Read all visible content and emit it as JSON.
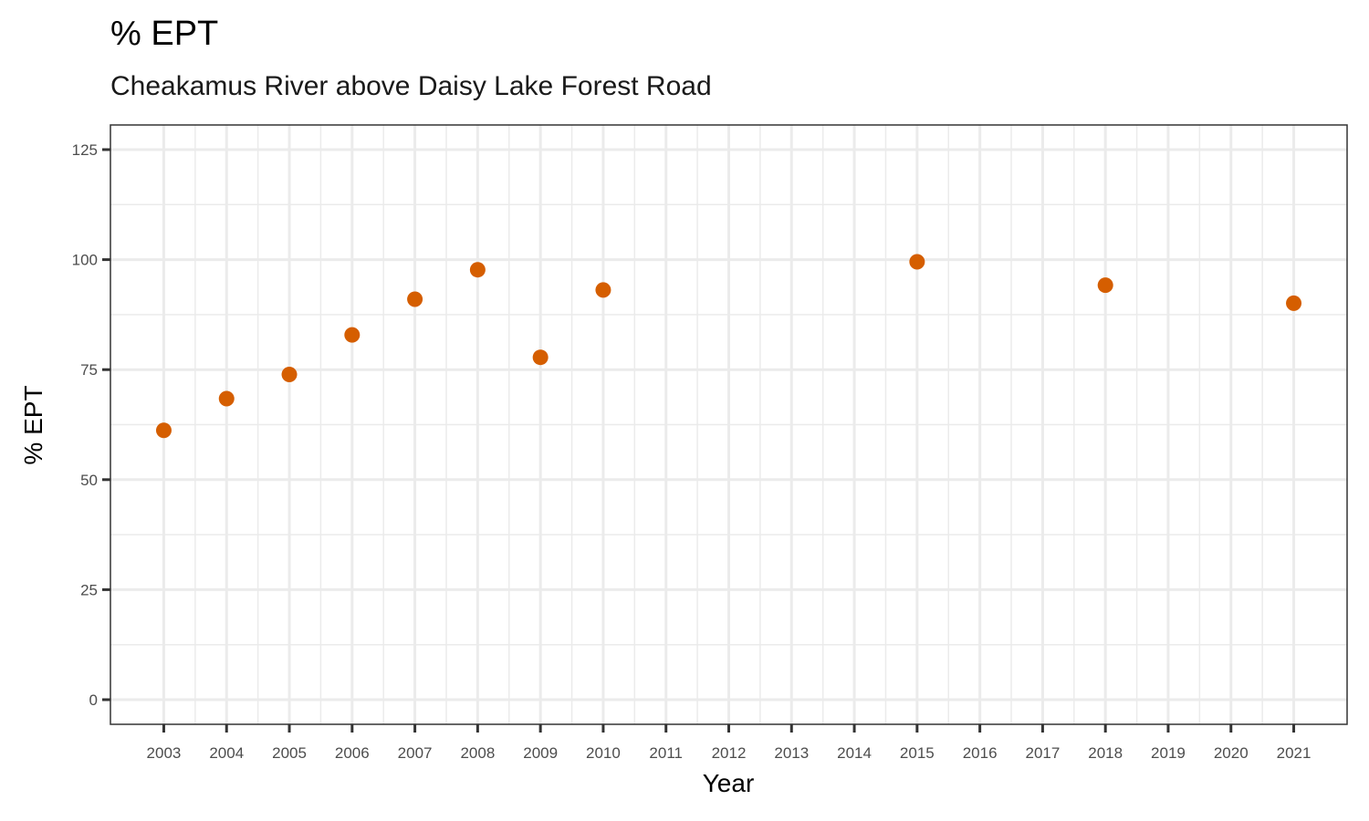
{
  "chart_data": {
    "type": "scatter",
    "title": "% EPT",
    "subtitle": "Cheakamus River above Daisy Lake Forest Road",
    "xlabel": "Year",
    "ylabel": "% EPT",
    "x_ticks": [
      "2003",
      "2004",
      "2005",
      "2006",
      "2007",
      "2008",
      "2009",
      "2010",
      "2011",
      "2012",
      "2013",
      "2014",
      "2015",
      "2016",
      "2017",
      "2018",
      "2019",
      "2020",
      "2021"
    ],
    "y_ticks": [
      0,
      25,
      50,
      75,
      100,
      125
    ],
    "xlim": [
      2002.15,
      2021.85
    ],
    "ylim": [
      -5.6,
      130.6
    ],
    "grid": true,
    "point_color": "#d55e00",
    "series": [
      {
        "x": [
          2003,
          2004,
          2005,
          2006,
          2007,
          2008,
          2009,
          2010,
          2015,
          2018,
          2021
        ],
        "y": [
          61.2,
          68.4,
          73.9,
          82.9,
          91.0,
          97.7,
          77.8,
          93.1,
          99.5,
          94.2,
          90.1
        ]
      }
    ]
  }
}
